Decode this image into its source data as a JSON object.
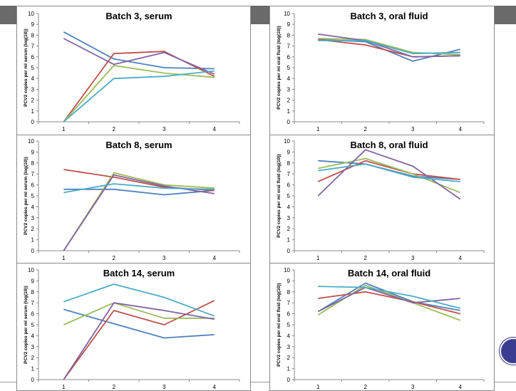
{
  "slide": {
    "band_color": "#6a6a6a",
    "badge_color": "#3a3d8f"
  },
  "chart_data": [
    {
      "type": "line",
      "title": "Batch 3, serum",
      "ylabel": "PCV2 copies per ml serum (log(10))",
      "categories": [
        "1",
        "2",
        "3",
        "4"
      ],
      "ylim": [
        0,
        10
      ],
      "yticks": [
        "0",
        "1",
        "2",
        "3",
        "4",
        "5",
        "6",
        "7",
        "8",
        "9",
        "10"
      ],
      "grid": false,
      "legend": "none",
      "series": [
        {
          "color": "#4f81bd",
          "values": [
            8.3,
            5.8,
            5.0,
            4.9
          ]
        },
        {
          "color": "#c0504d",
          "values": [
            0,
            6.3,
            6.5,
            4.2
          ]
        },
        {
          "color": "#9bbb59",
          "values": [
            0,
            5.2,
            4.5,
            4.1
          ]
        },
        {
          "color": "#8064a2",
          "values": [
            7.7,
            5.3,
            6.4,
            4.4
          ]
        },
        {
          "color": "#4bacc6",
          "values": [
            0,
            4.0,
            4.2,
            4.7
          ]
        }
      ]
    },
    {
      "type": "line",
      "title": "Batch 3, oral fluid",
      "ylabel": "PCV2 copies per ml oral fluid (log(10))",
      "categories": [
        "1",
        "2",
        "3",
        "4"
      ],
      "ylim": [
        0,
        10
      ],
      "yticks": [
        "0",
        "1",
        "2",
        "3",
        "4",
        "5",
        "6",
        "7",
        "8",
        "9",
        "10"
      ],
      "grid": false,
      "legend": "none",
      "series": [
        {
          "color": "#4f81bd",
          "values": [
            7.6,
            7.4,
            5.6,
            6.7
          ]
        },
        {
          "color": "#c0504d",
          "values": [
            7.6,
            7.1,
            6.0,
            6.1
          ]
        },
        {
          "color": "#9bbb59",
          "values": [
            7.7,
            7.6,
            6.4,
            6.2
          ]
        },
        {
          "color": "#8064a2",
          "values": [
            8.1,
            7.5,
            6.0,
            6.1
          ]
        },
        {
          "color": "#4bacc6",
          "values": [
            7.5,
            7.5,
            6.3,
            6.4
          ]
        }
      ]
    },
    {
      "type": "line",
      "title": "Batch 8, serum",
      "ylabel": "PCV2 copies per ml serum (log(10))",
      "categories": [
        "1",
        "2",
        "3",
        "4"
      ],
      "ylim": [
        0,
        10
      ],
      "yticks": [
        "0",
        "1",
        "2",
        "3",
        "4",
        "5",
        "6",
        "7",
        "8",
        "9",
        "10"
      ],
      "grid": false,
      "legend": "none",
      "series": [
        {
          "color": "#4f81bd",
          "values": [
            5.6,
            5.6,
            5.1,
            5.5
          ]
        },
        {
          "color": "#c0504d",
          "values": [
            7.4,
            6.7,
            5.8,
            5.5
          ]
        },
        {
          "color": "#9bbb59",
          "values": [
            0,
            7.1,
            6.0,
            5.7
          ]
        },
        {
          "color": "#8064a2",
          "values": [
            0,
            6.9,
            5.9,
            5.2
          ]
        },
        {
          "color": "#4bacc6",
          "values": [
            5.3,
            6.1,
            5.7,
            5.6
          ]
        }
      ]
    },
    {
      "type": "line",
      "title": "Batch 8, oral fluid",
      "ylabel": "PCV2 copies per ml oral fluid (log(10))",
      "categories": [
        "1",
        "2",
        "3",
        "4"
      ],
      "ylim": [
        0,
        10
      ],
      "yticks": [
        "0",
        "1",
        "2",
        "3",
        "4",
        "5",
        "6",
        "7",
        "8",
        "9",
        "10"
      ],
      "grid": false,
      "legend": "none",
      "series": [
        {
          "color": "#4f81bd",
          "values": [
            8.2,
            7.9,
            6.8,
            6.5
          ]
        },
        {
          "color": "#c0504d",
          "values": [
            6.3,
            8.2,
            7.0,
            6.5
          ]
        },
        {
          "color": "#9bbb59",
          "values": [
            7.5,
            8.4,
            7.0,
            5.3
          ]
        },
        {
          "color": "#8064a2",
          "values": [
            5.0,
            9.2,
            7.7,
            4.7
          ]
        },
        {
          "color": "#4bacc6",
          "values": [
            7.3,
            7.9,
            6.7,
            6.3
          ]
        }
      ]
    },
    {
      "type": "line",
      "title": "Batch 14, serum",
      "ylabel": "PCV2 copies per ml serum (log(10))",
      "categories": [
        "1",
        "2",
        "3",
        "4"
      ],
      "ylim": [
        0,
        10
      ],
      "yticks": [
        "0",
        "1",
        "2",
        "3",
        "4",
        "5",
        "6",
        "7",
        "8",
        "9",
        "10"
      ],
      "grid": false,
      "legend": "none",
      "series": [
        {
          "color": "#4f81bd",
          "values": [
            6.4,
            5.1,
            3.8,
            4.1
          ]
        },
        {
          "color": "#c0504d",
          "values": [
            0,
            6.3,
            5.0,
            7.2
          ]
        },
        {
          "color": "#9bbb59",
          "values": [
            5.0,
            7.0,
            5.6,
            5.6
          ]
        },
        {
          "color": "#8064a2",
          "values": [
            0,
            7.0,
            6.3,
            5.5
          ]
        },
        {
          "color": "#4bacc6",
          "values": [
            7.1,
            8.7,
            7.5,
            5.8
          ]
        }
      ]
    },
    {
      "type": "line",
      "title": "Batch 14, oral fluid",
      "ylabel": "PCV2 copies per ml oral fluid (log(10))",
      "categories": [
        "1",
        "2",
        "3",
        "4"
      ],
      "ylim": [
        0,
        10
      ],
      "yticks": [
        "0",
        "1",
        "2",
        "3",
        "4",
        "5",
        "6",
        "7",
        "8",
        "9",
        "10"
      ],
      "grid": false,
      "legend": "none",
      "series": [
        {
          "color": "#4f81bd",
          "values": [
            6.2,
            8.8,
            7.1,
            6.3
          ]
        },
        {
          "color": "#c0504d",
          "values": [
            7.4,
            8.0,
            7.1,
            6.0
          ]
        },
        {
          "color": "#9bbb59",
          "values": [
            5.9,
            8.6,
            7.0,
            5.4
          ]
        },
        {
          "color": "#8064a2",
          "values": [
            6.2,
            8.4,
            7.0,
            7.4
          ]
        },
        {
          "color": "#4bacc6",
          "values": [
            8.5,
            8.4,
            7.6,
            6.5
          ]
        }
      ]
    }
  ]
}
